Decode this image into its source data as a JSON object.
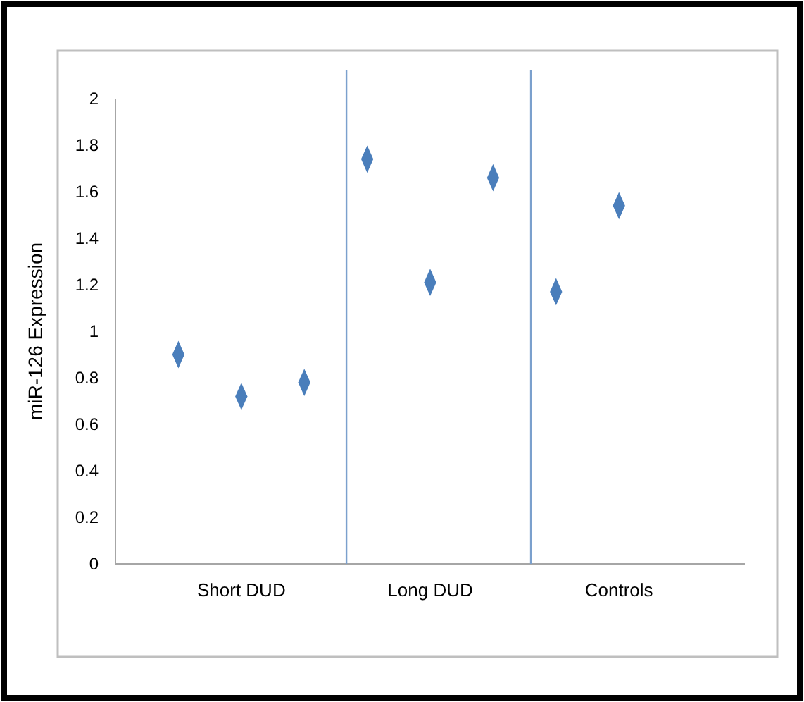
{
  "chart_data": {
    "type": "scatter",
    "ylabel": "miR-126 Expression",
    "categories": [
      null,
      "Short DUD",
      null,
      null,
      "Long DUD",
      null,
      null,
      "Controls"
    ],
    "series": [
      {
        "color": "#4a7ebb",
        "values": [
          0.9,
          0.72,
          0.78,
          1.74,
          1.21,
          1.66,
          1.17,
          1.54
        ]
      }
    ],
    "ylim": [
      0,
      2
    ],
    "yticks": [
      0,
      0.2,
      0.4,
      0.6,
      0.8,
      1,
      1.2,
      1.4,
      1.6,
      1.8,
      2
    ],
    "marker": "diamond",
    "grid": false
  }
}
